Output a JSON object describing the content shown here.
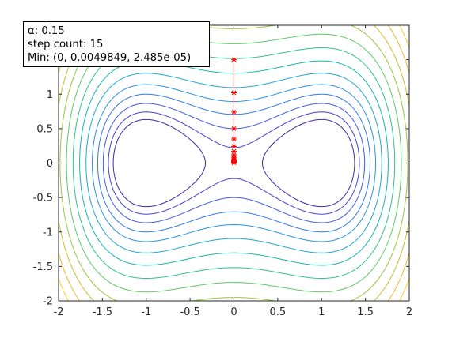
{
  "chart_data": {
    "type": "contour",
    "title": "",
    "xlabel": "",
    "ylabel": "",
    "xlim": [
      -2,
      2
    ],
    "ylim": [
      -2,
      2
    ],
    "x_ticks": [
      "-2",
      "-1.5",
      "-1",
      "-0.5",
      "0",
      "0.5",
      "1",
      "1.5",
      "2"
    ],
    "y_ticks": [
      "-2",
      "-1.5",
      "-1",
      "-0.5",
      "0",
      "0.5",
      "1",
      "1.5",
      "2"
    ],
    "grid": false,
    "contour_levels": [
      -0.2,
      0.1,
      0.5,
      1,
      1.6,
      2.4,
      3.4,
      4.6,
      6,
      7.6,
      9.4,
      11.4,
      13.6,
      16
    ],
    "path": {
      "marker": "*",
      "color": "#ff0000",
      "x": [
        0,
        0,
        0,
        0,
        0,
        0,
        0,
        0,
        0,
        0,
        0,
        0,
        0,
        0,
        0,
        0
      ],
      "y": [
        1.5,
        1.02,
        0.74,
        0.5,
        0.35,
        0.24,
        0.17,
        0.12,
        0.085,
        0.06,
        0.042,
        0.03,
        0.021,
        0.014,
        0.0098,
        0.0049849
      ]
    }
  },
  "info": {
    "alpha_line": "α: 0.15",
    "step_line": "step count: 15",
    "min_line": "Min: (0, 0.0049849, 2.485e-05)"
  }
}
